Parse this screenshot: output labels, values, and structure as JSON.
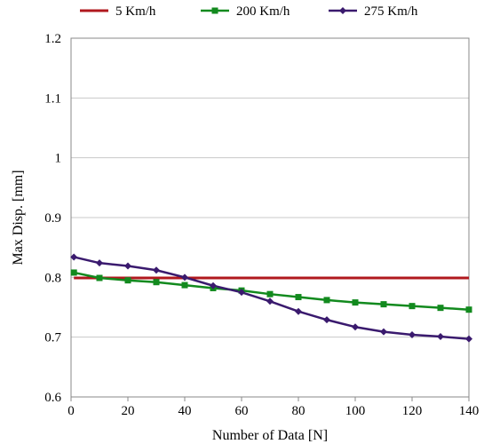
{
  "chart_data": {
    "type": "line",
    "title": "",
    "xlabel": "Number of Data [N]",
    "ylabel": "Max Disp. [mm]",
    "xlim": [
      0,
      140
    ],
    "ylim": [
      0.6,
      1.2
    ],
    "x_ticks": [
      0,
      20,
      40,
      60,
      80,
      100,
      120,
      140
    ],
    "x_tick_labels": [
      "0",
      "20",
      "40",
      "60",
      "80",
      "100",
      "120",
      "140"
    ],
    "y_ticks": [
      0.6,
      0.7,
      0.8,
      0.9,
      1.0,
      1.1,
      1.2
    ],
    "y_tick_labels": [
      "0.6",
      "0.7",
      "0.8",
      "0.9",
      "1",
      "1.1",
      "1.2"
    ],
    "grid": "horizontal",
    "legend_position": "top",
    "series": [
      {
        "name": "5 Km/h",
        "color": "#b0181e",
        "marker": "none",
        "x": [
          1,
          140
        ],
        "y": [
          0.799,
          0.799
        ]
      },
      {
        "name": "200 Km/h",
        "color": "#128a1e",
        "marker": "square",
        "x": [
          1,
          10,
          20,
          30,
          40,
          50,
          60,
          70,
          80,
          90,
          100,
          110,
          120,
          130,
          140
        ],
        "y": [
          0.808,
          0.799,
          0.795,
          0.792,
          0.787,
          0.782,
          0.778,
          0.772,
          0.767,
          0.762,
          0.758,
          0.755,
          0.752,
          0.749,
          0.746
        ]
      },
      {
        "name": "275 Km/h",
        "color": "#3a1a6e",
        "marker": "diamond",
        "x": [
          1,
          10,
          20,
          30,
          40,
          50,
          60,
          70,
          80,
          90,
          100,
          110,
          120,
          130,
          140
        ],
        "y": [
          0.834,
          0.824,
          0.819,
          0.812,
          0.8,
          0.786,
          0.775,
          0.76,
          0.743,
          0.729,
          0.717,
          0.709,
          0.704,
          0.701,
          0.697
        ]
      }
    ]
  }
}
